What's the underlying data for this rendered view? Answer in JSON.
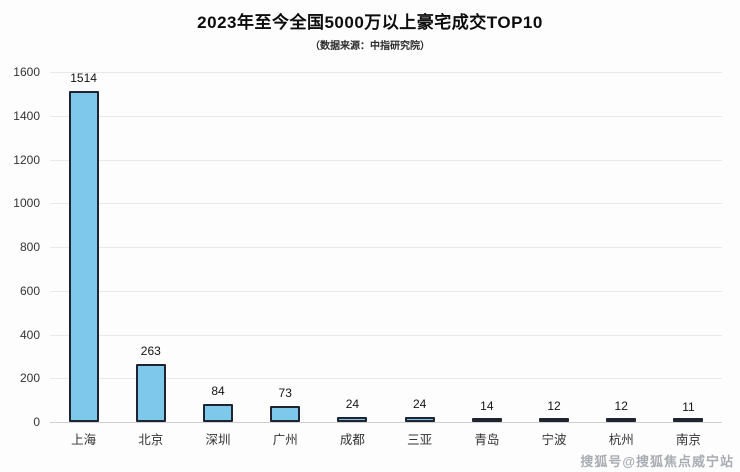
{
  "header": {
    "title": "2023年至今全国5000万以上豪宅成交TOP10",
    "subtitle": "（数据来源：中指研究院）"
  },
  "watermark": "搜狐号@搜狐焦点威宁站",
  "chart_data": {
    "type": "bar",
    "title": "2023年至今全国5000万以上豪宅成交TOP10",
    "subtitle": "（数据来源：中指研究院）",
    "categories": [
      "上海",
      "北京",
      "深圳",
      "广州",
      "成都",
      "三亚",
      "青岛",
      "宁波",
      "杭州",
      "南京"
    ],
    "values": [
      1514,
      263,
      84,
      73,
      24,
      24,
      14,
      12,
      12,
      11
    ],
    "xlabel": "",
    "ylabel": "",
    "ylim": [
      0,
      1600
    ],
    "yticks": [
      0,
      200,
      400,
      600,
      800,
      1000,
      1200,
      1400,
      1600
    ],
    "grid": true,
    "legend_position": "none",
    "bar_color": "#7EC8EC",
    "bar_border_color": "#1e2430"
  }
}
